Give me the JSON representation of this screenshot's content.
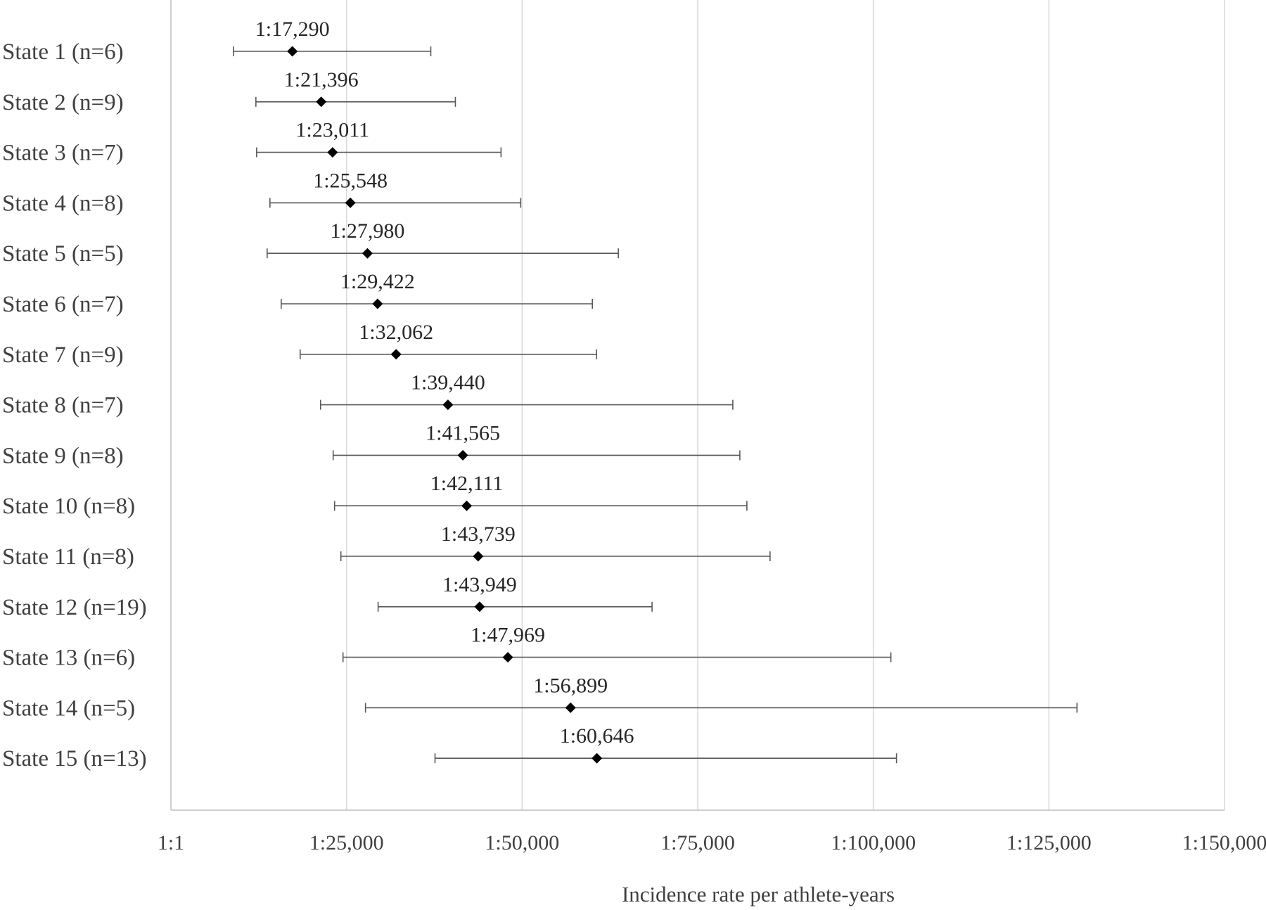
{
  "chart_data": {
    "type": "scatter",
    "orientation": "horizontal",
    "xlabel": "Incidence rate per athlete-years",
    "xlim": [
      0,
      150000
    ],
    "x_ticks": [
      0,
      25000,
      50000,
      75000,
      100000,
      125000,
      150000
    ],
    "x_tick_labels": [
      "1:1",
      "1:25,000",
      "1:50,000",
      "1:75,000",
      "1:100,000",
      "1:125,000",
      "1:150,000"
    ],
    "grid": "vertical",
    "categories": [
      "State 1 (n=6)",
      "State 2 (n=9)",
      "State 3 (n=7)",
      "State 4 (n=8)",
      "State 5 (n=5)",
      "State 6 (n=7)",
      "State 7 (n=9)",
      "State 8 (n=7)",
      "State 9 (n=8)",
      "State 10 (n=8)",
      "State 11 (n=8)",
      "State 12 (n=19)",
      "State 13 (n=6)",
      "State 14 (n=5)",
      "State 15 (n=13)"
    ],
    "values": [
      17290,
      21396,
      23011,
      25548,
      27980,
      29422,
      32062,
      39440,
      41565,
      42111,
      43739,
      43949,
      47969,
      56899,
      60646
    ],
    "lower": [
      8900,
      12100,
      12200,
      14100,
      13700,
      15700,
      18400,
      21300,
      23100,
      23300,
      24200,
      29500,
      24500,
      27700,
      37600
    ],
    "upper": [
      37000,
      40500,
      47000,
      49800,
      63700,
      60000,
      60600,
      80000,
      81000,
      82000,
      85300,
      68500,
      102500,
      129000,
      103300
    ],
    "data_labels": [
      "1:17,290",
      "1:21,396",
      "1:23,011",
      "1:25,548",
      "1:27,980",
      "1:29,422",
      "1:32,062",
      "1:39,440",
      "1:41,565",
      "1:42,111",
      "1:43,739",
      "1:43,949",
      "1:47,969",
      "1:56,899",
      "1:60,646"
    ],
    "marker": "diamond",
    "marker_color": "#000000",
    "errorbar_color": "#595959",
    "gridline_color": "#d9d9d9"
  }
}
